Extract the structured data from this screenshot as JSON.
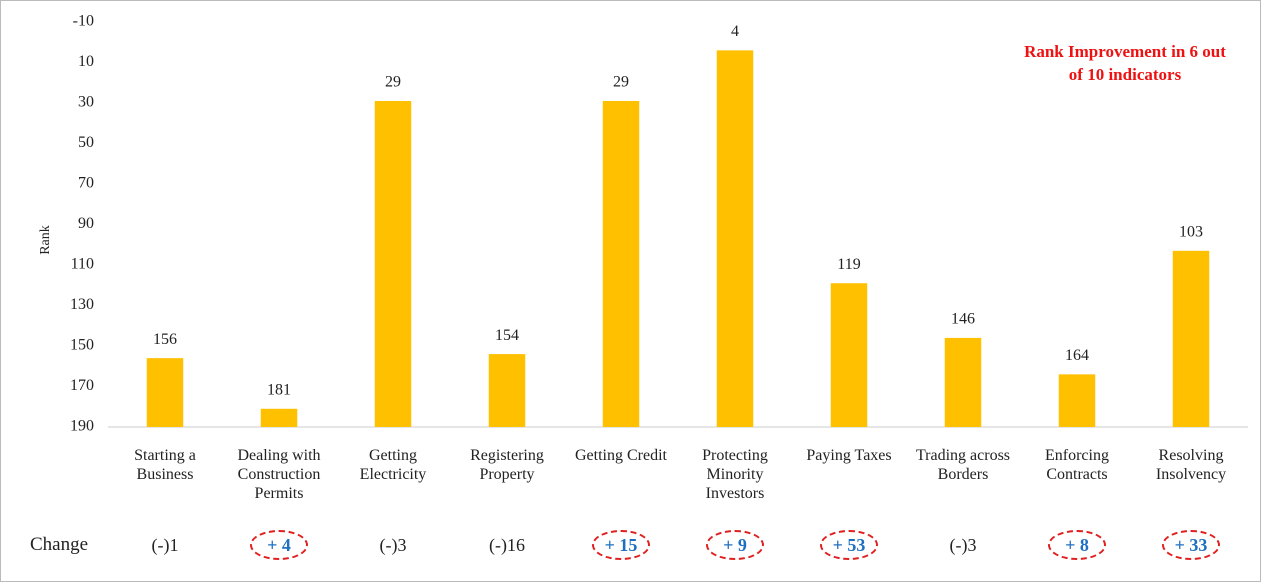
{
  "chart_data": {
    "type": "bar",
    "y_label": "Rank",
    "annotation": "Rank Improvement in 6 out of 10 indicators",
    "categories": [
      "Starting a Business",
      "Dealing with Construction Permits",
      "Getting Electricity",
      "Registering Property",
      "Getting Credit",
      "Protecting Minority Investors",
      "Paying Taxes",
      "Trading across Borders",
      "Enforcing Contracts",
      "Resolving Insolvency"
    ],
    "values": [
      156,
      181,
      29,
      154,
      29,
      4,
      119,
      146,
      164,
      103
    ],
    "color": "#ffc000",
    "ylim": [
      -10,
      190
    ],
    "y_inverted": true,
    "yticks": [
      -10,
      10,
      30,
      50,
      70,
      90,
      110,
      130,
      150,
      170,
      190
    ],
    "grid": false,
    "changes": {
      "label": "Change",
      "values": [
        "(-)1",
        "+ 4",
        "(-)3",
        "(-)16",
        "+ 15",
        "+ 9",
        "+ 53",
        "(-)3",
        "+ 8",
        "+ 33"
      ],
      "highlight": [
        false,
        true,
        false,
        false,
        true,
        true,
        true,
        false,
        true,
        true
      ]
    }
  }
}
